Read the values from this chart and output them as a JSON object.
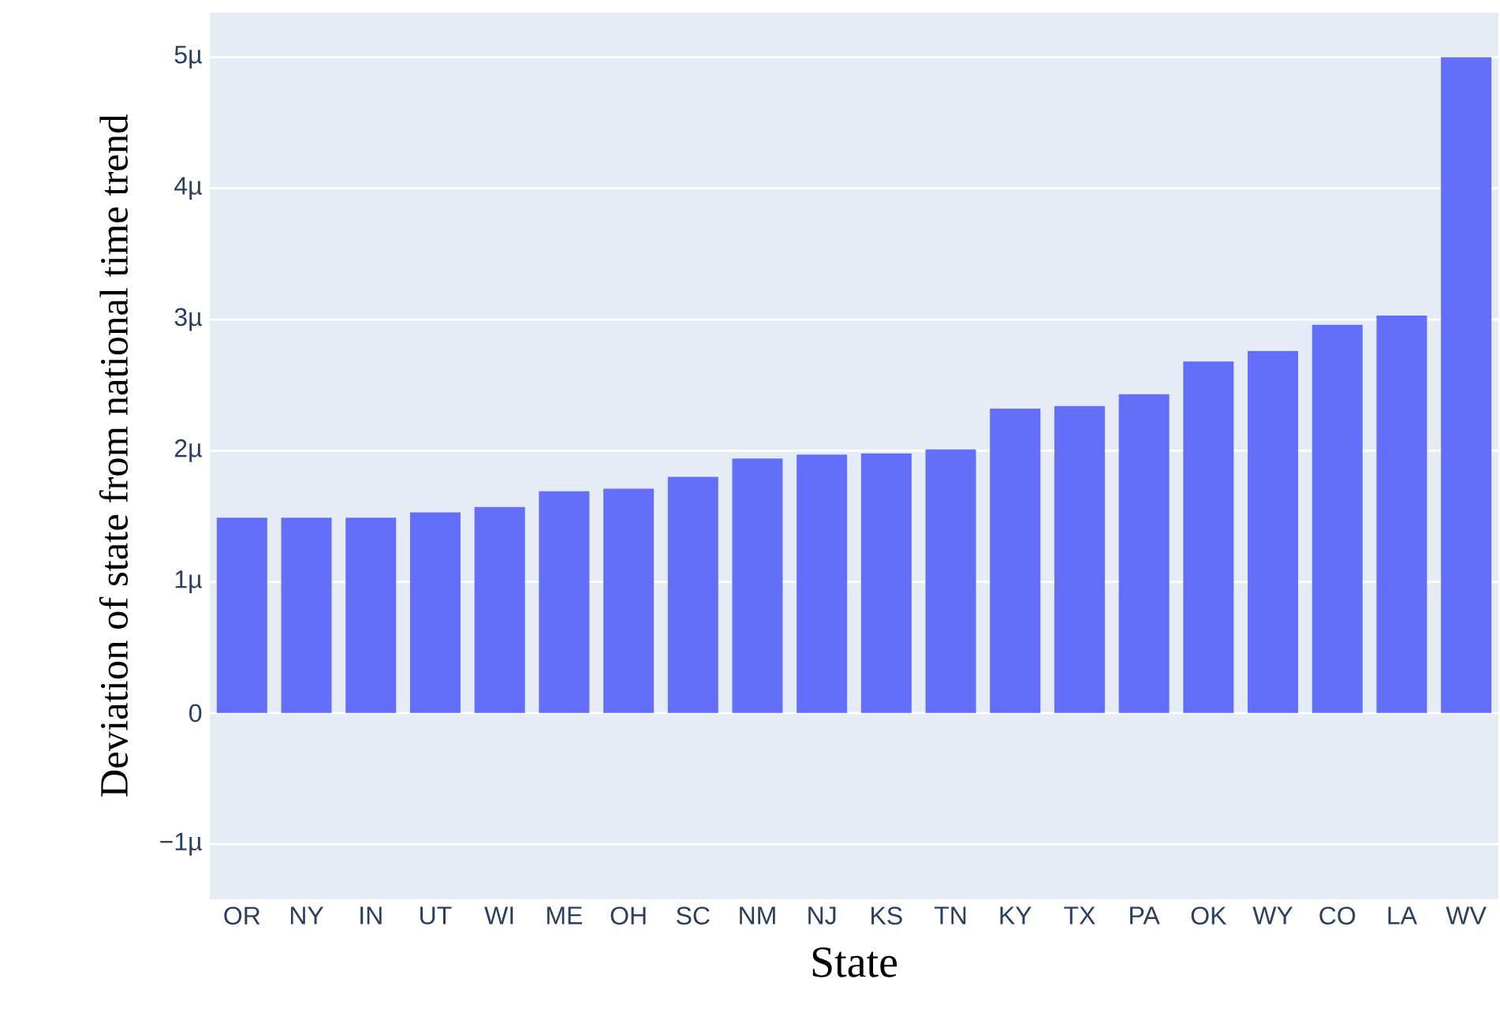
{
  "chart_data": {
    "type": "bar",
    "xlabel": "State",
    "ylabel": "Deviation of state from national time trend",
    "categories": [
      "OR",
      "NY",
      "IN",
      "UT",
      "WI",
      "ME",
      "OH",
      "SC",
      "NM",
      "NJ",
      "KS",
      "TN",
      "KY",
      "TX",
      "PA",
      "OK",
      "WY",
      "CO",
      "LA",
      "WV"
    ],
    "values": [
      1.49,
      1.49,
      1.49,
      1.53,
      1.57,
      1.69,
      1.71,
      1.8,
      1.94,
      1.97,
      1.98,
      2.01,
      2.32,
      2.34,
      2.43,
      2.68,
      2.76,
      2.96,
      3.03,
      5.0
    ],
    "color": "#636efa",
    "ylim": [
      -1.42,
      5.34
    ],
    "yticks": [
      {
        "value": -1,
        "label": "−1µ"
      },
      0,
      {
        "value": 1,
        "label": "1µ"
      },
      {
        "value": 2,
        "label": "2µ"
      },
      {
        "value": 3,
        "label": "3µ"
      },
      {
        "value": 4,
        "label": "4µ"
      },
      {
        "value": 5,
        "label": "5µ"
      }
    ],
    "grid": "y"
  }
}
